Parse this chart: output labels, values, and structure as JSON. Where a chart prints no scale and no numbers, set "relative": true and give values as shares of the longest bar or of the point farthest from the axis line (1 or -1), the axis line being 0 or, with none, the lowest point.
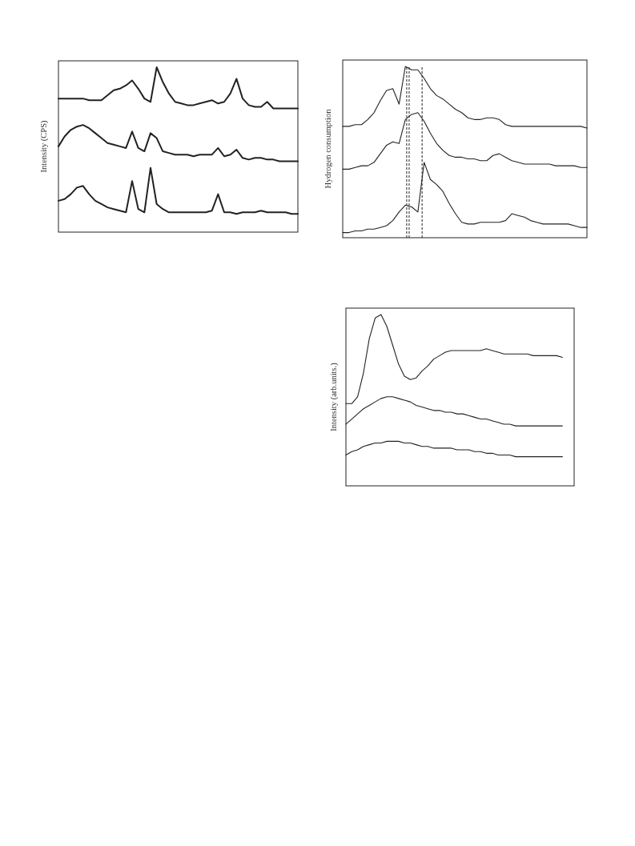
{
  "chart_data": [
    {
      "type": "line",
      "relative": true,
      "ylabel": "Intensity (CPS)",
      "categories": [
        null,
        null,
        null,
        null,
        null,
        null,
        null,
        null,
        null,
        null,
        null,
        null,
        null,
        null,
        null,
        null,
        null,
        null,
        null,
        null,
        null,
        null,
        null,
        null,
        null,
        null,
        null,
        null,
        null,
        null,
        null,
        null,
        null,
        null,
        null,
        null,
        null,
        null,
        null,
        null
      ],
      "series": [
        {
          "color": "#222222",
          "values": [
            0.81,
            0.81,
            0.81,
            0.81,
            0.81,
            0.8,
            0.8,
            0.8,
            0.83,
            0.86,
            0.87,
            0.89,
            0.92,
            0.87,
            0.81,
            0.79,
            1,
            0.91,
            0.84,
            0.79,
            0.78,
            0.77,
            0.77,
            0.78,
            0.79,
            0.8,
            0.78,
            0.79,
            0.84,
            0.93,
            0.81,
            0.77,
            0.76,
            0.76,
            0.79,
            0.75,
            0.75,
            0.75,
            0.75,
            0.75
          ]
        },
        {
          "color": "#222222",
          "values": [
            0.52,
            0.58,
            0.62,
            0.64,
            0.65,
            0.63,
            0.6,
            0.57,
            0.54,
            0.53,
            0.52,
            0.51,
            0.61,
            0.51,
            0.49,
            0.6,
            0.57,
            0.49,
            0.48,
            0.47,
            0.47,
            0.47,
            0.46,
            0.47,
            0.47,
            0.47,
            0.51,
            0.46,
            0.47,
            0.5,
            0.45,
            0.44,
            0.45,
            0.45,
            0.44,
            0.44,
            0.43,
            0.43,
            0.43,
            0.43
          ]
        },
        {
          "color": "#222222",
          "values": [
            0.19,
            0.2,
            0.23,
            0.27,
            0.28,
            0.23,
            0.19,
            0.17,
            0.15,
            0.14,
            0.13,
            0.12,
            0.31,
            0.14,
            0.12,
            0.39,
            0.17,
            0.14,
            0.12,
            0.12,
            0.12,
            0.12,
            0.12,
            0.12,
            0.12,
            0.13,
            0.23,
            0.12,
            0.12,
            0.11,
            0.12,
            0.12,
            0.12,
            0.13,
            0.12,
            0.12,
            0.12,
            0.12,
            0.11,
            0.11
          ]
        }
      ]
    },
    {
      "type": "line",
      "relative": true,
      "ylabel": "Hydrogen consumption",
      "categories": [
        null,
        null,
        null,
        null,
        null,
        null,
        null,
        null,
        null,
        null,
        null,
        null,
        null,
        null,
        null,
        null,
        null,
        null,
        null,
        null,
        null,
        null,
        null,
        null,
        null,
        null,
        null,
        null,
        null,
        null,
        null,
        null,
        null,
        null,
        null,
        null,
        null,
        null,
        null,
        null
      ],
      "series": [
        {
          "color": "#222222",
          "values": [
            0.65,
            0.65,
            0.66,
            0.66,
            0.69,
            0.73,
            0.8,
            0.86,
            0.87,
            0.78,
            1,
            0.98,
            0.98,
            0.93,
            0.87,
            0.83,
            0.81,
            0.78,
            0.75,
            0.73,
            0.7,
            0.69,
            0.69,
            0.7,
            0.7,
            0.69,
            0.66,
            0.65,
            0.65,
            0.65,
            0.65,
            0.65,
            0.65,
            0.65,
            0.65,
            0.65,
            0.65,
            0.65,
            0.65,
            0.64
          ]
        },
        {
          "color": "#222222",
          "values": [
            0.4,
            0.4,
            0.41,
            0.42,
            0.42,
            0.44,
            0.49,
            0.54,
            0.56,
            0.55,
            0.69,
            0.72,
            0.73,
            0.68,
            0.61,
            0.55,
            0.51,
            0.48,
            0.47,
            0.47,
            0.46,
            0.46,
            0.45,
            0.45,
            0.48,
            0.49,
            0.47,
            0.45,
            0.44,
            0.43,
            0.43,
            0.43,
            0.43,
            0.43,
            0.42,
            0.42,
            0.42,
            0.42,
            0.41,
            0.41
          ]
        },
        {
          "color": "#222222",
          "values": [
            0.03,
            0.03,
            0.04,
            0.04,
            0.05,
            0.05,
            0.06,
            0.07,
            0.1,
            0.15,
            0.19,
            0.18,
            0.15,
            0.44,
            0.34,
            0.31,
            0.27,
            0.2,
            0.14,
            0.09,
            0.08,
            0.08,
            0.09,
            0.09,
            0.09,
            0.09,
            0.1,
            0.14,
            0.13,
            0.12,
            0.1,
            0.09,
            0.08,
            0.08,
            0.08,
            0.08,
            0.08,
            0.07,
            0.06,
            0.06
          ]
        }
      ]
    },
    {
      "type": "line",
      "relative": true,
      "ylabel": "Intensity (arb.units.)",
      "categories": [
        null,
        null,
        null,
        null,
        null,
        null,
        null,
        null,
        null,
        null,
        null,
        null,
        null,
        null,
        null,
        null,
        null,
        null,
        null,
        null,
        null,
        null,
        null,
        null,
        null,
        null,
        null,
        null,
        null,
        null,
        null,
        null,
        null,
        null,
        null,
        null,
        null,
        null,
        null,
        null
      ],
      "series": [
        {
          "color": "#222222",
          "values": [
            0.48,
            0.48,
            0.52,
            0.66,
            0.86,
            0.98,
            1,
            0.93,
            0.82,
            0.71,
            0.64,
            0.62,
            0.63,
            0.67,
            0.7,
            0.74,
            0.76,
            0.78,
            0.79,
            0.79,
            0.79,
            0.79,
            0.79,
            0.79,
            0.8,
            0.79,
            0.78,
            0.77,
            0.77,
            0.77,
            0.77,
            0.77,
            0.76,
            0.76,
            0.76,
            0.76,
            0.76,
            0.75,
            null,
            null
          ]
        },
        {
          "color": "#222222",
          "values": [
            0.36,
            0.39,
            0.42,
            0.45,
            0.47,
            0.49,
            0.51,
            0.52,
            0.52,
            0.51,
            0.5,
            0.49,
            0.47,
            0.46,
            0.45,
            0.44,
            0.44,
            0.43,
            0.43,
            0.42,
            0.42,
            0.41,
            0.4,
            0.39,
            0.39,
            0.38,
            0.37,
            0.36,
            0.36,
            0.35,
            0.35,
            0.35,
            0.35,
            0.35,
            0.35,
            0.35,
            0.35,
            0.35,
            null,
            null
          ]
        },
        {
          "color": "#222222",
          "values": [
            0.18,
            0.2,
            0.21,
            0.23,
            0.24,
            0.25,
            0.25,
            0.26,
            0.26,
            0.26,
            0.25,
            0.25,
            0.24,
            0.23,
            0.23,
            0.22,
            0.22,
            0.22,
            0.22,
            0.21,
            0.21,
            0.21,
            0.2,
            0.2,
            0.19,
            0.19,
            0.18,
            0.18,
            0.18,
            0.17,
            0.17,
            0.17,
            0.17,
            0.17,
            0.17,
            0.17,
            0.17,
            0.17,
            null,
            null
          ]
        }
      ]
    }
  ]
}
